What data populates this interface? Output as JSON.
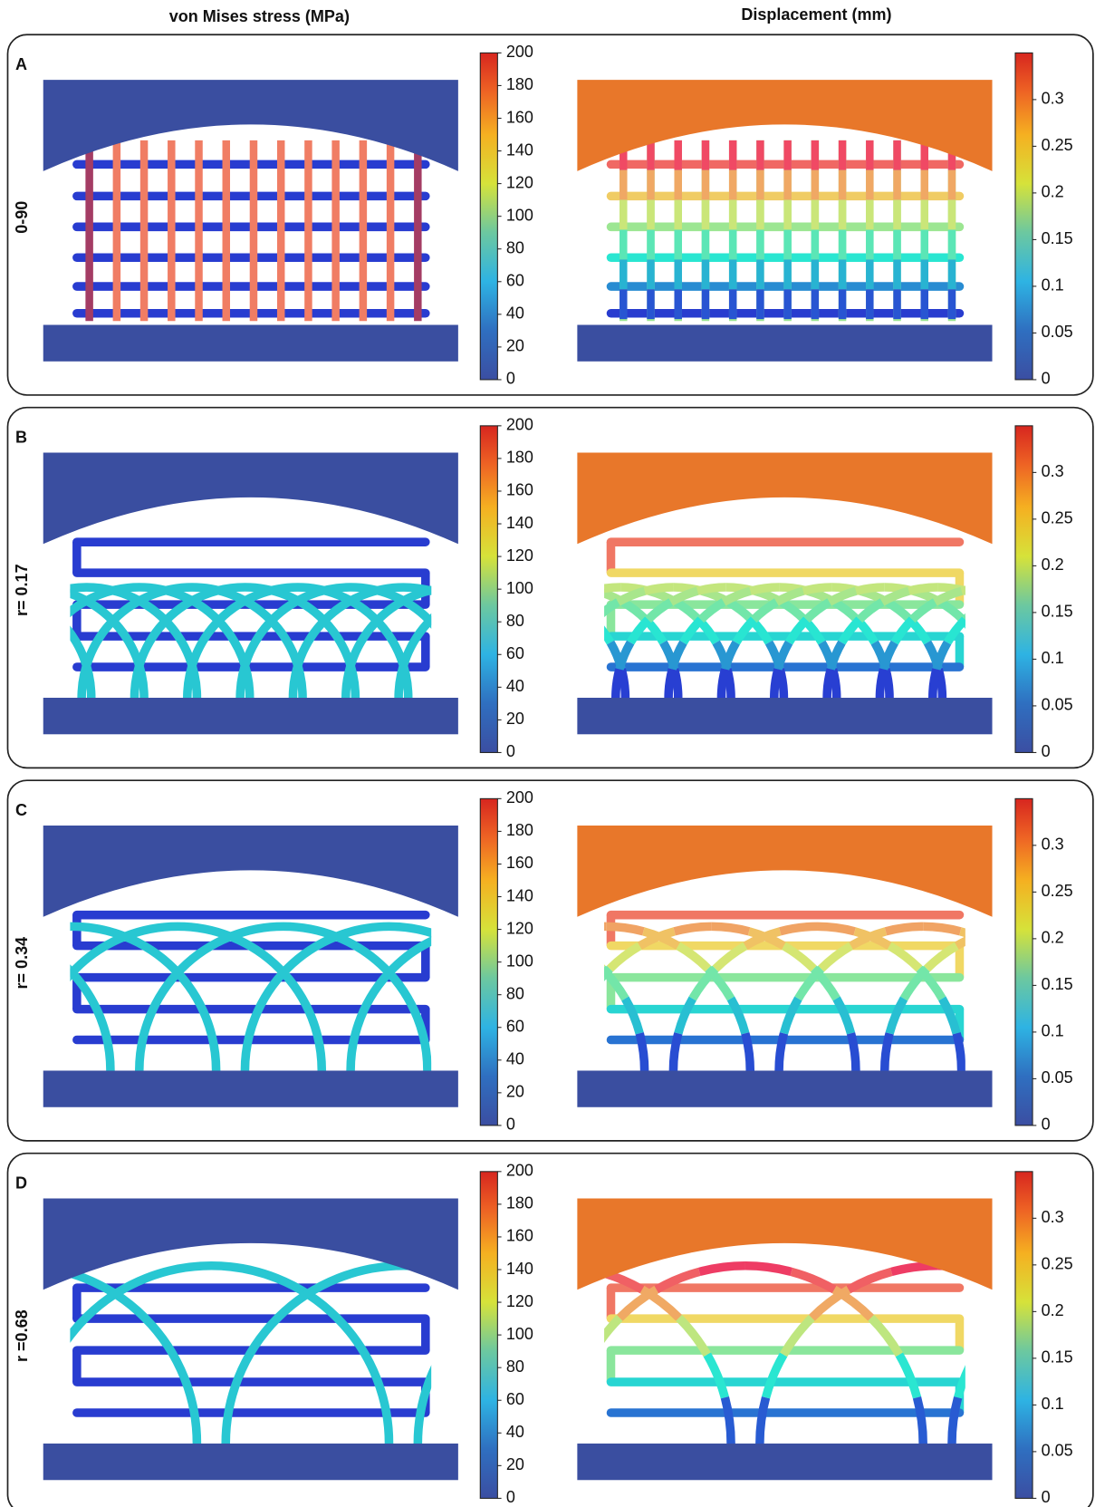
{
  "headers": [
    "von Mises stress (MPa)",
    "Displacement (mm)"
  ],
  "panels": [
    {
      "label": "A",
      "row_label": "0-90"
    },
    {
      "label": "B",
      "row_label": "r= 0.17"
    },
    {
      "label": "C",
      "row_label": "r= 0.34"
    },
    {
      "label": "D",
      "row_label": "r =0.68"
    }
  ],
  "colorbars": [
    {
      "range": [
        0,
        200
      ],
      "ticks": [
        0,
        20,
        40,
        60,
        80,
        100,
        120,
        140,
        160,
        180,
        200
      ]
    },
    {
      "range": [
        0,
        0.35
      ],
      "ticks": [
        0,
        0.05,
        0.1,
        0.15,
        0.2,
        0.25,
        0.3
      ]
    }
  ]
}
